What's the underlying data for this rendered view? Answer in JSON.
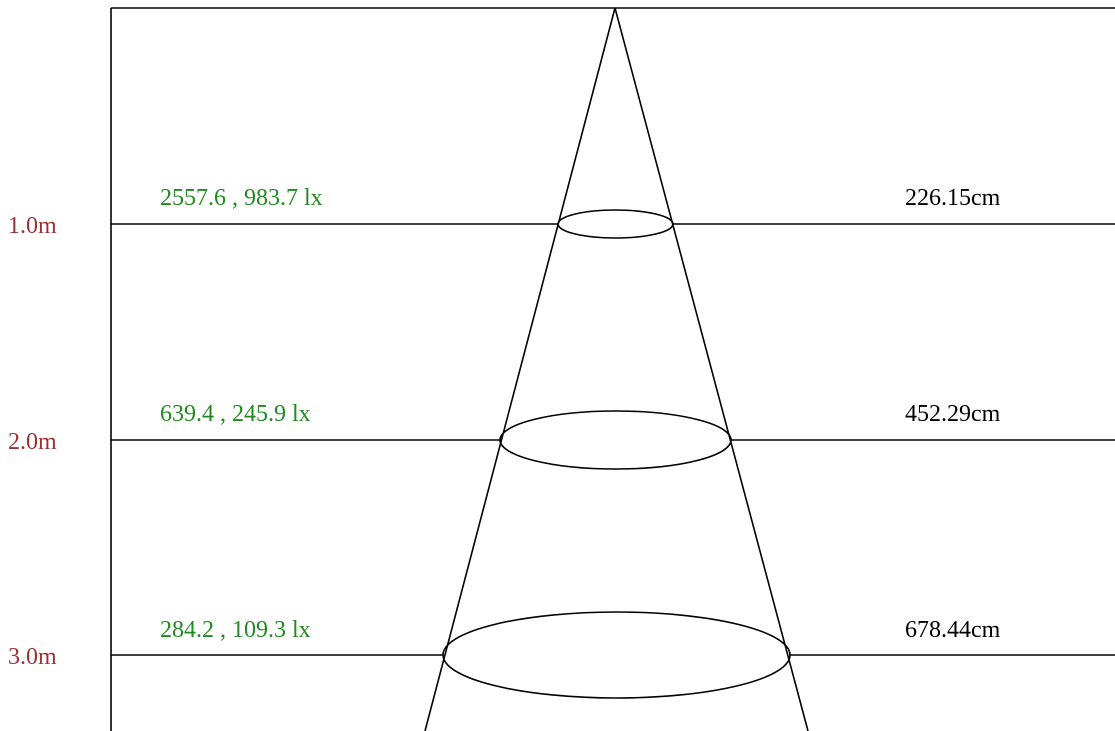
{
  "colors": {
    "distance_label": "#993333",
    "lux_label": "#218a21",
    "line": "#000000",
    "background": "#ffffff"
  },
  "levels": [
    {
      "distance": "1.0m",
      "lux": "2557.6 , 983.7 lx",
      "diameter": "226.15cm"
    },
    {
      "distance": "2.0m",
      "lux": "639.4 , 245.9 lx",
      "diameter": "452.29cm"
    },
    {
      "distance": "3.0m",
      "lux": "284.2 , 109.3 lx",
      "diameter": "678.44cm"
    }
  ]
}
